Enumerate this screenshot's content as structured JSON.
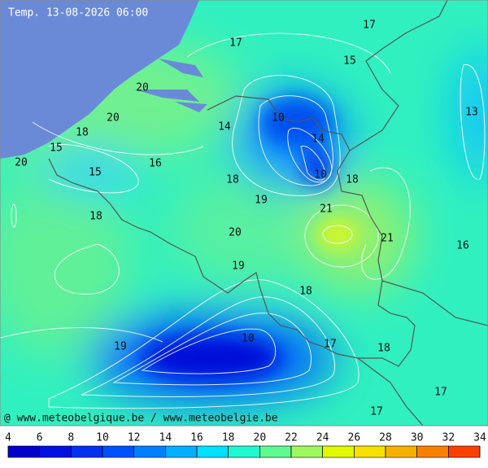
{
  "title": "Temp. 13-08-2026 06:00",
  "credit": "@ www.meteobelgique.be / www.meteobelgie.be",
  "contour_labels": [
    17,
    17,
    15,
    13,
    20,
    20,
    10,
    14,
    14,
    18,
    15,
    20,
    16,
    15,
    10,
    18,
    18,
    19,
    21,
    18,
    20,
    21,
    16,
    19,
    18,
    10,
    17,
    19,
    18,
    17,
    17
  ],
  "legend": {
    "ticks": [
      4,
      6,
      8,
      10,
      12,
      14,
      16,
      18,
      20,
      22,
      24,
      26,
      28,
      30,
      32,
      34
    ],
    "colors": [
      "#0000c8",
      "#0010e0",
      "#0030f0",
      "#0050ff",
      "#0080ff",
      "#00b0ff",
      "#00e0ff",
      "#20f8d0",
      "#60f890",
      "#a0f860",
      "#e0f800",
      "#f8e000",
      "#f8b000",
      "#f88000",
      "#f84000"
    ]
  }
}
